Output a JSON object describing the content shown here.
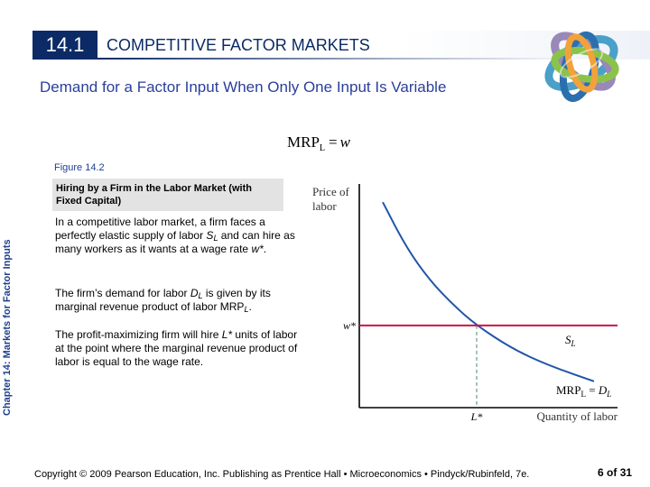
{
  "sidebar": {
    "chapter_label": "Chapter 14: Markets for Factor Inputs"
  },
  "header": {
    "section_number": "14.1",
    "section_title": "COMPETITIVE FACTOR MARKETS",
    "subtitle": "Demand for a Factor Input When Only One Input Is Variable"
  },
  "formula": {
    "lhs": "MRP",
    "lhs_sub": "L",
    "operator": "=",
    "rhs": "w"
  },
  "figure": {
    "label": "Figure 14.2",
    "caption": "Hiring by a Firm in the Labor Market (with Fixed Capital)"
  },
  "body": {
    "p1": {
      "a": "In a competitive labor market, a firm faces a perfectly elastic supply of labor ",
      "s": "S",
      "s_sub": "L",
      "b": " and can hire as many workers as it wants at a wage rate ",
      "w": "w*",
      "c": "."
    },
    "p2": {
      "a": "The firm’s demand for labor ",
      "d": "D",
      "d_sub": "L",
      "b": " is given by its marginal revenue product of labor MRP",
      "mrp_sub": "L",
      "c": "."
    },
    "p3": {
      "a": "The profit-maximizing firm will hire ",
      "l": "L*",
      "b": " units of labor at the point where the marginal revenue product of labor is equal to the wage rate."
    }
  },
  "chart_data": {
    "type": "line",
    "xlabel": "Quantity of labor",
    "ylabel": "Price of labor",
    "x_tick": "L*",
    "y_tick": "w*",
    "supply_label": {
      "main": "S",
      "sub": "L"
    },
    "demand_label": {
      "main": "MRP",
      "sub": "L",
      "eq": " = ",
      "d": "D",
      "dsub": "L"
    },
    "series": [
      {
        "name": "S_L",
        "x": [
          0,
          1,
          2.2
        ],
        "y": [
          1,
          1,
          1
        ]
      },
      {
        "name": "MRP_L = D_L",
        "x": [
          0.2,
          0.4,
          0.6,
          0.8,
          1.0,
          1.3,
          1.6,
          2.0
        ],
        "y": [
          2.5,
          1.95,
          1.55,
          1.25,
          1.0,
          0.72,
          0.52,
          0.32
        ]
      }
    ],
    "xlim": [
      0,
      2.2
    ],
    "ylim": [
      0,
      2.7
    ],
    "colors": {
      "supply": "#c8144b",
      "demand": "#1f56a8",
      "guide": "#4a8a6a"
    }
  },
  "footer": {
    "copyright": "Copyright © 2009 Pearson Education, Inc. Publishing as Prentice Hall • Microeconomics • Pindyck/Rubinfeld, 7e.",
    "page_current": "6",
    "page_of": " of ",
    "page_total": "31"
  },
  "logo": {
    "icon": "interlocking-rings-logo-icon"
  }
}
